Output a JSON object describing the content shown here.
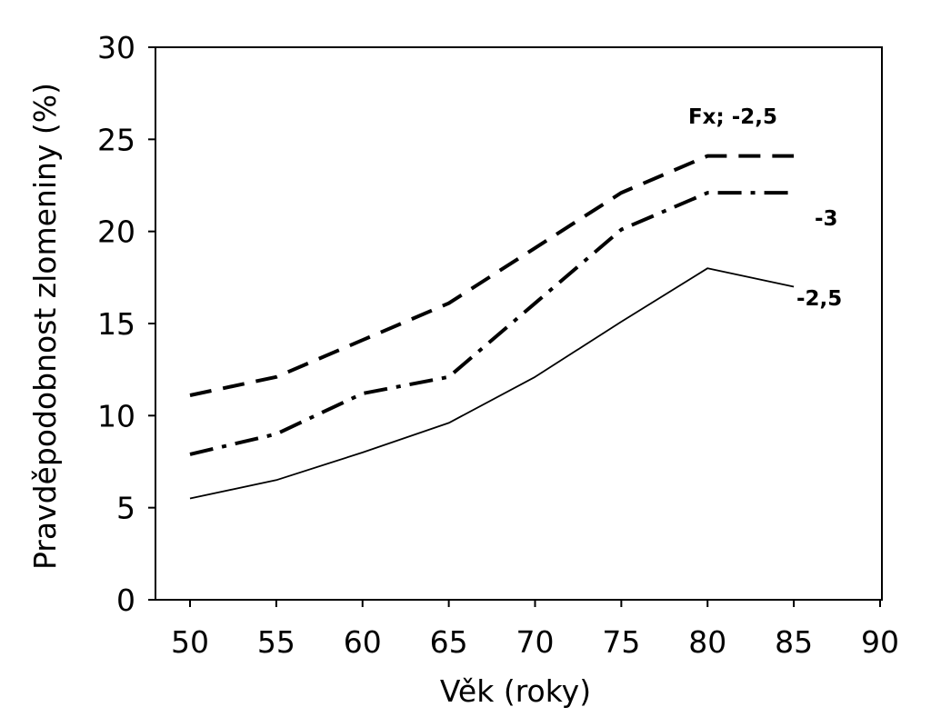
{
  "chart_data": {
    "type": "line",
    "title": "",
    "xlabel": "Věk (roky)",
    "ylabel": "Pravděpodobnost zlomeniny (%)",
    "xlim": [
      50,
      90
    ],
    "ylim": [
      0,
      30
    ],
    "xticks": [
      "50",
      "55",
      "60",
      "65",
      "70",
      "75",
      "80",
      "85",
      "90"
    ],
    "yticks": [
      "0",
      "5",
      "10",
      "15",
      "20",
      "25",
      "30"
    ],
    "grid": false,
    "series": [
      {
        "name": "Fx; -2,5",
        "style": "dashed",
        "x": [
          50,
          55,
          60,
          65,
          70,
          75,
          80,
          85
        ],
        "y": [
          11.1,
          12.1,
          14.1,
          16.1,
          19.1,
          22.1,
          24.1,
          24.1
        ]
      },
      {
        "name": "-3",
        "style": "dash-dot",
        "x": [
          50,
          55,
          60,
          65,
          70,
          75,
          80,
          85
        ],
        "y": [
          7.9,
          9.0,
          11.2,
          12.1,
          16.1,
          20.1,
          22.1,
          22.1
        ]
      },
      {
        "name": "-2,5",
        "style": "solid",
        "x": [
          50,
          55,
          60,
          65,
          70,
          75,
          80,
          85
        ],
        "y": [
          5.5,
          6.5,
          8.0,
          9.6,
          12.1,
          15.1,
          18.0,
          17.0
        ]
      }
    ]
  }
}
